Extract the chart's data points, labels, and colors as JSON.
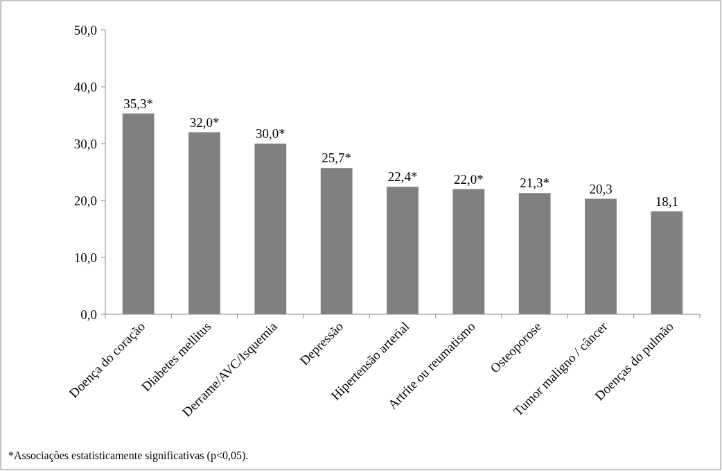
{
  "chart_data": {
    "type": "bar",
    "categories": [
      "Doença do coração",
      "Diabetes mellitus",
      "Derrame/AVC/Isquemia",
      "Depressão",
      "Hipertensão arterial",
      "Artrite ou reumatismo",
      "Osteoporose",
      "Tumor maligno / câncer",
      "Doenças do pulmão"
    ],
    "values": [
      35.3,
      32.0,
      30.0,
      25.7,
      22.4,
      22.0,
      21.3,
      20.3,
      18.1
    ],
    "value_labels": [
      "35,3*",
      "32,0*",
      "30,0*",
      "25,7*",
      "22,4*",
      "22,0*",
      "21,3*",
      "20,3",
      "18,1"
    ],
    "color": "#808080",
    "ylim": [
      0,
      50
    ],
    "yticks": [
      {
        "value": 0,
        "label": "0,0"
      },
      {
        "value": 10,
        "label": "10,0"
      },
      {
        "value": 20,
        "label": "20,0"
      },
      {
        "value": 30,
        "label": "30,0"
      },
      {
        "value": 40,
        "label": "40,0"
      },
      {
        "value": 50,
        "label": "50,0"
      }
    ],
    "grid": false,
    "annotations": [
      "*Associações estatisticamente significativas (p<0,05)."
    ]
  }
}
